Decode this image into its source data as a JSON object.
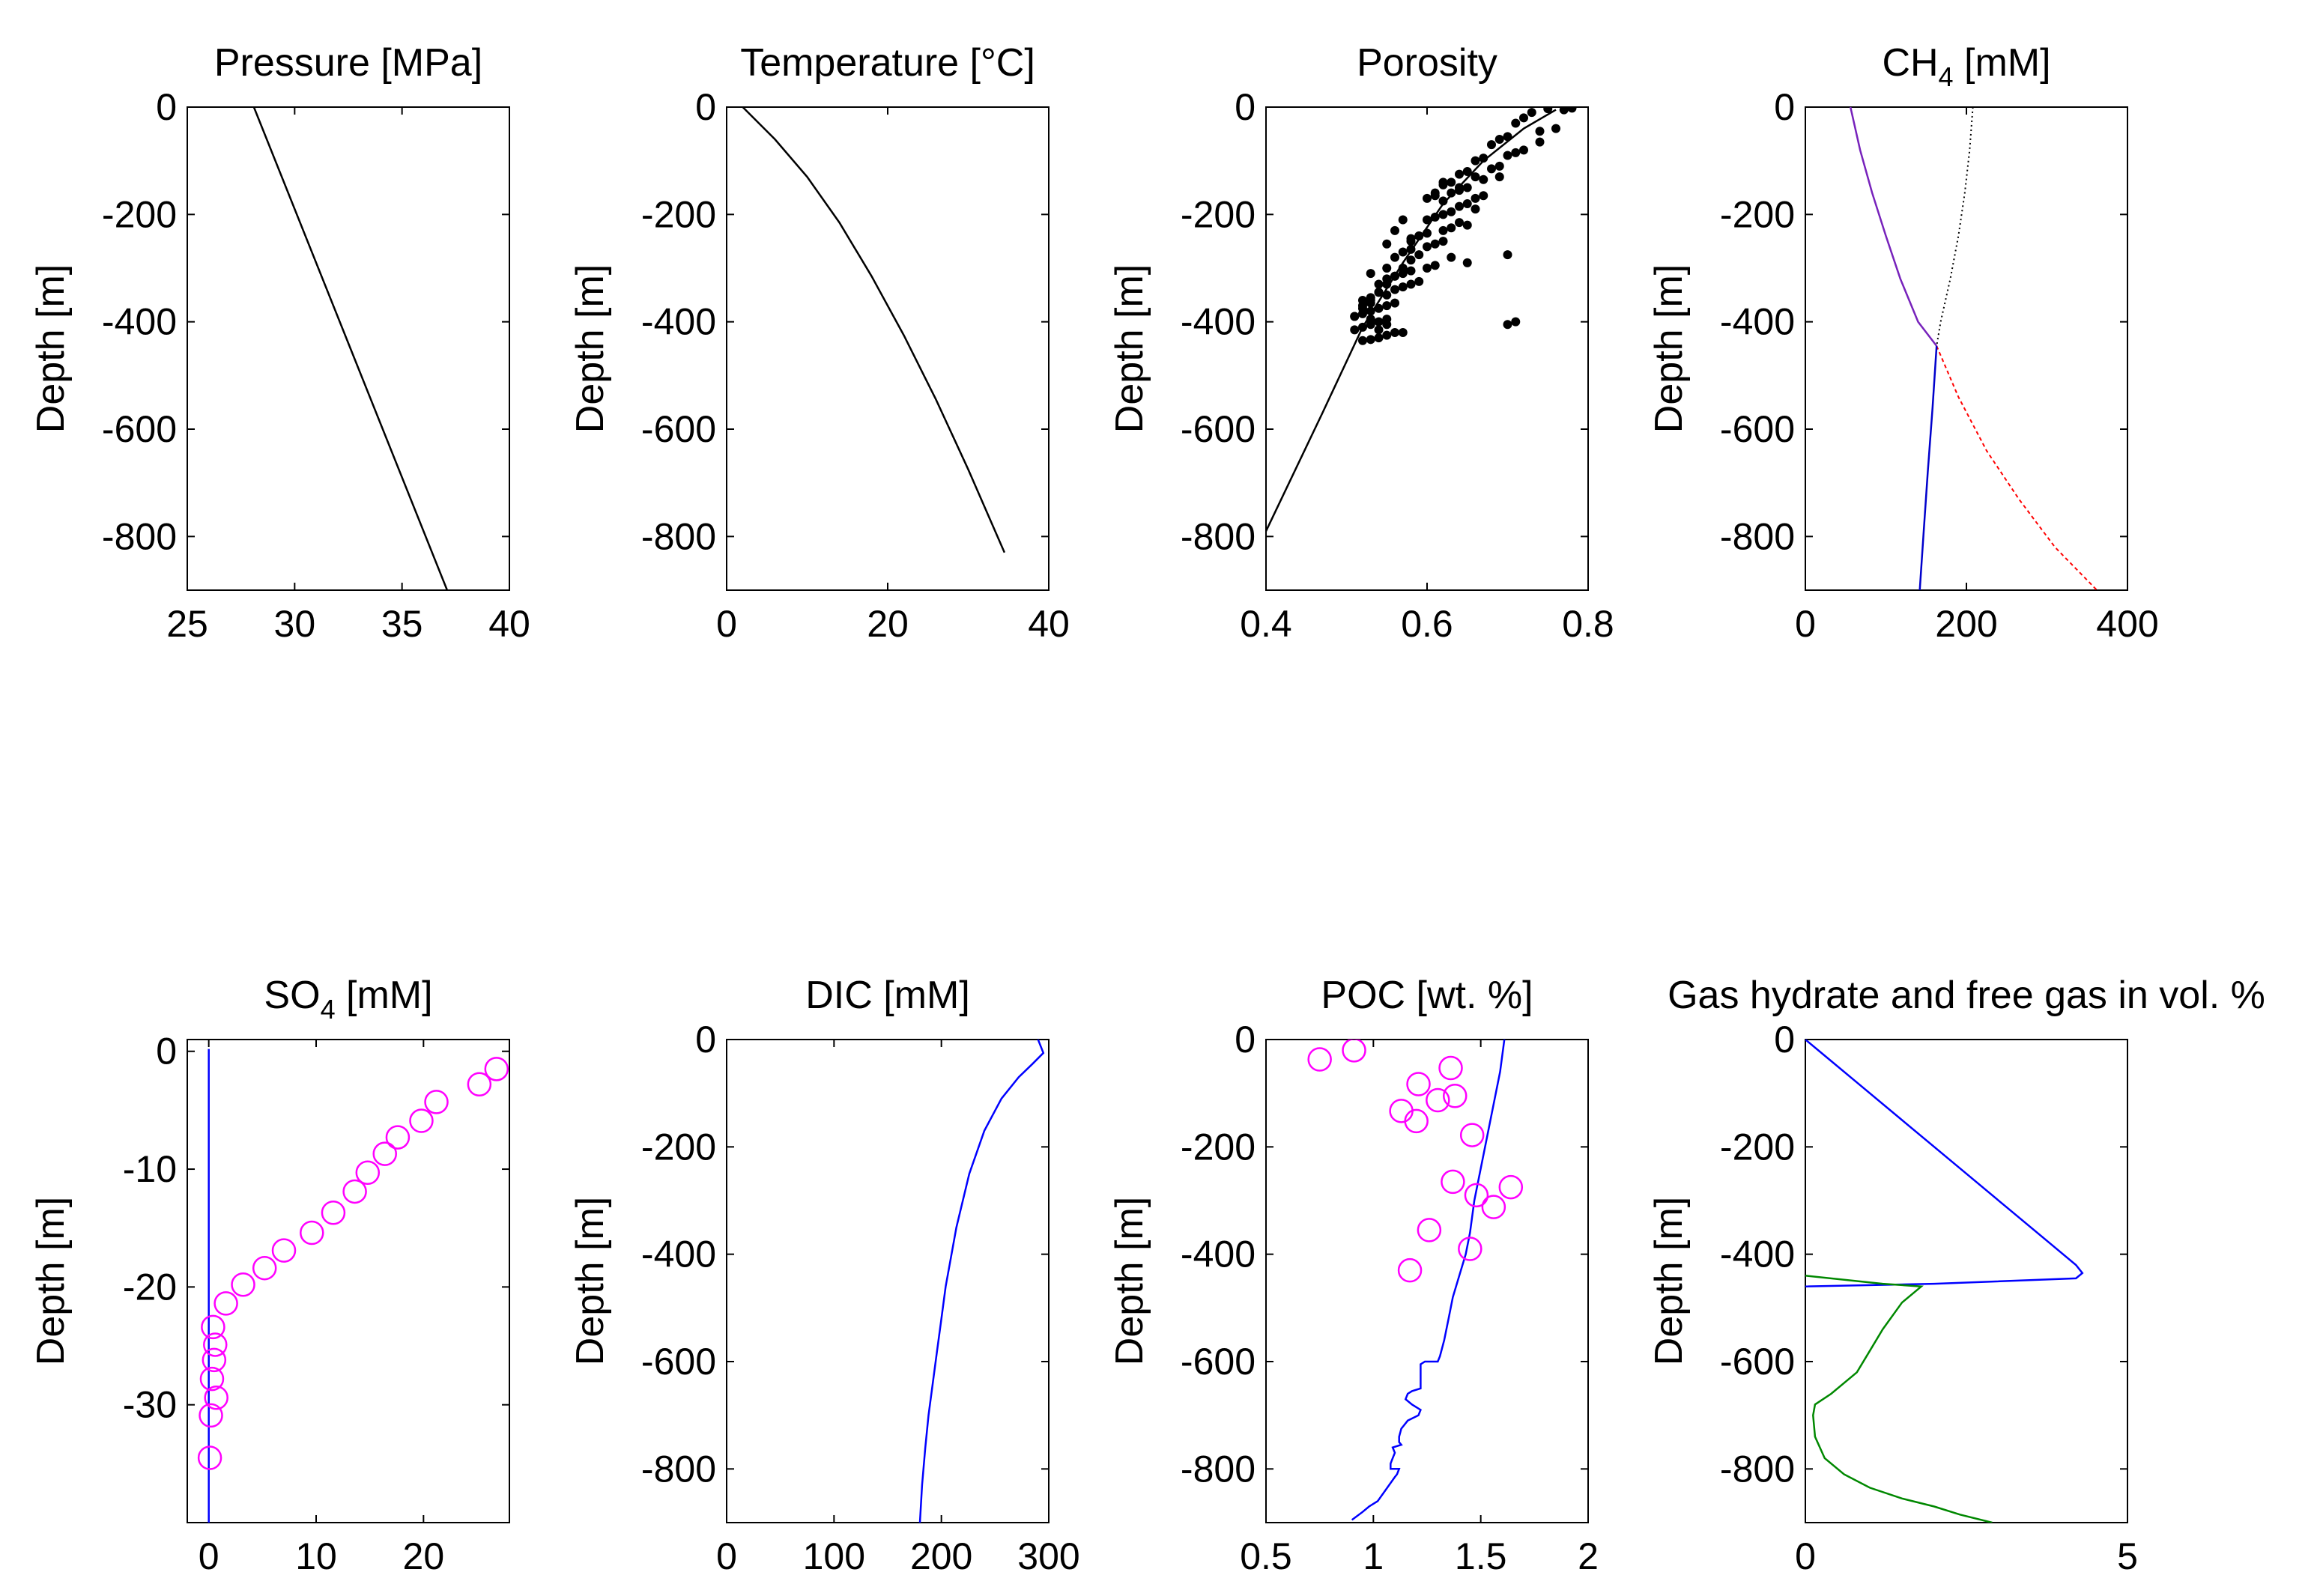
{
  "figure": {
    "ylabel": "Depth [m]"
  },
  "chart_data": [
    {
      "id": "pressure",
      "type": "line",
      "title": "Pressure [MPa]",
      "title_sub": "",
      "title_suffix": "",
      "ylabel": "Depth [m]",
      "xlim": [
        25,
        40
      ],
      "ylim": [
        -900,
        0
      ],
      "xticks": [
        25,
        30,
        35,
        40
      ],
      "yticks": [
        0,
        -200,
        -400,
        -600,
        -800
      ],
      "series": [
        {
          "color": "#000000",
          "style": "solid",
          "x": [
            28.1,
            32.6,
            37.1
          ],
          "y": [
            0,
            -450,
            -900
          ]
        }
      ]
    },
    {
      "id": "temperature",
      "type": "line",
      "title": "Temperature [°C]",
      "title_sub": "",
      "title_suffix": "",
      "ylabel": "Depth [m]",
      "xlim": [
        0,
        40
      ],
      "ylim": [
        -900,
        0
      ],
      "xticks": [
        0,
        20,
        40
      ],
      "yticks": [
        0,
        -200,
        -400,
        -600,
        -800
      ],
      "series": [
        {
          "color": "#000000",
          "style": "solid",
          "x": [
            2,
            6,
            10,
            14,
            18,
            22,
            26,
            30,
            34.5
          ],
          "y": [
            0,
            -60,
            -130,
            -215,
            -315,
            -425,
            -545,
            -675,
            -830
          ]
        }
      ]
    },
    {
      "id": "porosity",
      "type": "scatter",
      "title": "Porosity",
      "title_sub": "",
      "title_suffix": "",
      "ylabel": "Depth [m]",
      "xlim": [
        0.4,
        0.8
      ],
      "ylim": [
        -900,
        0
      ],
      "xticks": [
        0.4,
        0.6,
        0.8
      ],
      "yticks": [
        0,
        -200,
        -400,
        -600,
        -800
      ],
      "series": [
        {
          "color": "#000000",
          "style": "solid",
          "x": [
            0.4,
            0.47,
            0.52,
            0.57,
            0.62,
            0.67,
            0.72,
            0.76
          ],
          "y": [
            -790,
            -570,
            -410,
            -290,
            -180,
            -100,
            -40,
            -5
          ]
        }
      ],
      "points": {
        "color": "#000000",
        "marker": "dot",
        "x": [
          0.78,
          0.77,
          0.75,
          0.73,
          0.72,
          0.71,
          0.74,
          0.76,
          0.7,
          0.69,
          0.68,
          0.72,
          0.74,
          0.7,
          0.67,
          0.66,
          0.69,
          0.71,
          0.65,
          0.64,
          0.66,
          0.63,
          0.62,
          0.65,
          0.67,
          0.68,
          0.64,
          0.63,
          0.61,
          0.62,
          0.66,
          0.65,
          0.64,
          0.63,
          0.62,
          0.61,
          0.6,
          0.64,
          0.66,
          0.67,
          0.65,
          0.63,
          0.62,
          0.6,
          0.59,
          0.58,
          0.62,
          0.61,
          0.6,
          0.58,
          0.57,
          0.59,
          0.63,
          0.65,
          0.7,
          0.61,
          0.6,
          0.58,
          0.57,
          0.56,
          0.55,
          0.59,
          0.58,
          0.57,
          0.56,
          0.54,
          0.55,
          0.53,
          0.52,
          0.56,
          0.55,
          0.54,
          0.53,
          0.52,
          0.51,
          0.55,
          0.54,
          0.53,
          0.52,
          0.51,
          0.56,
          0.55,
          0.54,
          0.53,
          0.52,
          0.57,
          0.56,
          0.55,
          0.54,
          0.53,
          0.52,
          0.51,
          0.58,
          0.55,
          0.57,
          0.54,
          0.53,
          0.52,
          0.7,
          0.71,
          0.56,
          0.58,
          0.54,
          0.53,
          0.55,
          0.56,
          0.61,
          0.62,
          0.6,
          0.57,
          0.55,
          0.53,
          0.54,
          0.59,
          0.64,
          0.69
        ],
        "y": [
          -2,
          -5,
          -3,
          -10,
          -20,
          -30,
          -45,
          -40,
          -55,
          -60,
          -70,
          -80,
          -65,
          -90,
          -95,
          -100,
          -110,
          -85,
          -120,
          -125,
          -130,
          -140,
          -145,
          -150,
          -135,
          -115,
          -155,
          -160,
          -165,
          -175,
          -170,
          -180,
          -185,
          -195,
          -200,
          -205,
          -210,
          -215,
          -190,
          -165,
          -220,
          -225,
          -230,
          -235,
          -240,
          -245,
          -250,
          -255,
          -260,
          -265,
          -270,
          -275,
          -280,
          -290,
          -275,
          -295,
          -300,
          -305,
          -310,
          -315,
          -320,
          -325,
          -330,
          -335,
          -340,
          -345,
          -350,
          -355,
          -360,
          -365,
          -370,
          -375,
          -380,
          -385,
          -390,
          -395,
          -400,
          -405,
          -410,
          -415,
          -420,
          -425,
          -430,
          -433,
          -435,
          -300,
          -315,
          -330,
          -345,
          -360,
          -375,
          -390,
          -285,
          -405,
          -420,
          -415,
          -395,
          -370,
          -405,
          -400,
          -230,
          -250,
          -345,
          -365,
          -300,
          -280,
          -160,
          -140,
          -170,
          -210,
          -255,
          -310,
          -330,
          -240,
          -150,
          -130
        ]
      }
    },
    {
      "id": "ch4",
      "type": "line",
      "title": "CH",
      "title_sub": "4",
      "title_suffix": " [mM]",
      "ylabel": "Depth [m]",
      "xlim": [
        0,
        400
      ],
      "ylim": [
        -900,
        0
      ],
      "xticks": [
        0,
        200,
        400
      ],
      "yticks": [
        0,
        -200,
        -400,
        -600,
        -800
      ],
      "series": [
        {
          "color": "#000000",
          "style": "dotted",
          "x": [
            208,
            204,
            198,
            190,
            180,
            168,
            163
          ],
          "y": [
            0,
            -80,
            -160,
            -240,
            -320,
            -400,
            -445
          ]
        },
        {
          "color": "#7722bb",
          "style": "solid",
          "x": [
            56,
            68,
            83,
            100,
            118,
            140,
            163
          ],
          "y": [
            0,
            -80,
            -160,
            -240,
            -320,
            -400,
            -445
          ]
        },
        {
          "color": "#ff0000",
          "style": "dashed",
          "x": [
            163,
            190,
            225,
            265,
            310,
            362
          ],
          "y": [
            -445,
            -540,
            -640,
            -730,
            -820,
            -900
          ]
        },
        {
          "color": "#0000cc",
          "style": "solid",
          "x": [
            163,
            158,
            152,
            147,
            142
          ],
          "y": [
            -445,
            -560,
            -680,
            -790,
            -900
          ]
        }
      ]
    },
    {
      "id": "so4",
      "type": "scatter",
      "title": "SO",
      "title_sub": "4",
      "title_suffix": " [mM]",
      "ylabel": "Depth [m]",
      "xlim": [
        -2,
        28
      ],
      "ylim": [
        -40,
        1
      ],
      "xticks": [
        0,
        10,
        20
      ],
      "yticks": [
        0,
        -10,
        -20,
        -30
      ],
      "series": [
        {
          "color": "#0000ff",
          "style": "solid",
          "x": [
            0,
            0
          ],
          "y": [
            0.2,
            -40
          ]
        }
      ],
      "points": {
        "color": "#ff00ff",
        "marker": "circle",
        "x": [
          26.8,
          25.2,
          21.2,
          19.8,
          17.6,
          16.4,
          14.8,
          13.6,
          11.6,
          9.6,
          7.0,
          5.2,
          3.2,
          1.6,
          0.4,
          0.6,
          0.5,
          0.3,
          0.7,
          0.2,
          0.1
        ],
        "y": [
          -1.5,
          -2.8,
          -4.3,
          -5.9,
          -7.3,
          -8.7,
          -10.3,
          -11.9,
          -13.7,
          -15.4,
          -16.9,
          -18.4,
          -19.8,
          -21.4,
          -23.4,
          -24.9,
          -26.2,
          -27.8,
          -29.4,
          -30.9,
          -34.5
        ]
      }
    },
    {
      "id": "dic",
      "type": "line",
      "title": "DIC [mM]",
      "title_sub": "",
      "title_suffix": "",
      "ylabel": "Depth [m]",
      "xlim": [
        0,
        300
      ],
      "ylim": [
        -900,
        0
      ],
      "xticks": [
        0,
        100,
        200,
        300
      ],
      "yticks": [
        0,
        -200,
        -400,
        -600,
        -800
      ],
      "series": [
        {
          "color": "#0000ff",
          "style": "solid",
          "x": [
            290,
            295,
            285,
            272,
            256,
            240,
            226,
            214,
            204,
            200,
            196,
            192,
            188,
            185,
            182,
            180
          ],
          "y": [
            0,
            -25,
            -45,
            -70,
            -110,
            -170,
            -250,
            -350,
            -460,
            -520,
            -580,
            -640,
            -700,
            -760,
            -830,
            -900
          ]
        }
      ]
    },
    {
      "id": "poc",
      "type": "scatter",
      "title": "POC [wt. %]",
      "title_sub": "",
      "title_suffix": "",
      "ylabel": "Depth [m]",
      "xlim": [
        0.5,
        2
      ],
      "ylim": [
        -900,
        0
      ],
      "xticks": [
        0.5,
        1,
        1.5,
        2
      ],
      "yticks": [
        0,
        -200,
        -400,
        -600,
        -800
      ],
      "series": [
        {
          "color": "#0000ff",
          "style": "solid",
          "x": [
            1.61,
            1.59,
            1.56,
            1.53,
            1.5,
            1.47,
            1.45,
            1.43,
            1.4,
            1.37,
            1.35,
            1.33,
            1.31,
            1.3,
            1.24,
            1.22,
            1.22,
            1.18,
            1.16,
            1.15,
            1.18,
            1.22,
            1.21,
            1.16,
            1.14,
            1.13,
            1.12,
            1.12,
            1.13,
            1.09,
            1.1,
            1.09,
            1.08,
            1.08,
            1.12,
            1.11,
            1.1,
            1.02,
            0.98,
            0.95,
            0.9
          ],
          "y": [
            0,
            -60,
            -120,
            -180,
            -240,
            -300,
            -360,
            -400,
            -440,
            -480,
            -520,
            -560,
            -590,
            -600,
            -600,
            -605,
            -650,
            -655,
            -660,
            -670,
            -680,
            -690,
            -700,
            -710,
            -720,
            -725,
            -740,
            -750,
            -755,
            -760,
            -770,
            -780,
            -790,
            -800,
            -800,
            -810,
            -815,
            -860,
            -870,
            -880,
            -895
          ]
        }
      ],
      "points": {
        "color": "#ff00ff",
        "marker": "circle",
        "x": [
          0.75,
          0.91,
          1.36,
          1.21,
          1.38,
          1.3,
          1.13,
          1.2,
          1.46,
          1.37,
          1.64,
          1.48,
          1.56,
          1.26,
          1.45,
          1.17
        ],
        "y": [
          -37,
          -20,
          -53,
          -83,
          -105,
          -113,
          -133,
          -152,
          -178,
          -265,
          -275,
          -290,
          -312,
          -355,
          -390,
          -430
        ]
      }
    },
    {
      "id": "hydrate",
      "type": "line",
      "title": "Gas hydrate and free gas in vol. %",
      "title_sub": "",
      "title_suffix": "",
      "ylabel": "Depth [m]",
      "xlim": [
        0,
        5
      ],
      "ylim": [
        -900,
        0
      ],
      "xticks": [
        0,
        5
      ],
      "yticks": [
        0,
        -200,
        -400,
        -600,
        -800
      ],
      "series": [
        {
          "color": "#0000ff",
          "style": "solid",
          "x": [
            0,
            0.3,
            0.8,
            1.5,
            2.3,
            3.1,
            3.8,
            4.2,
            4.3,
            4.2,
            2.0,
            0
          ],
          "y": [
            0,
            -30,
            -80,
            -150,
            -230,
            -310,
            -380,
            -420,
            -435,
            -445,
            -455,
            -460
          ]
        },
        {
          "color": "#008800",
          "style": "solid",
          "x": [
            0,
            1.2,
            1.8,
            1.5,
            1.2,
            1.0,
            0.8,
            0.4,
            0.15,
            0.12,
            0.15,
            0.3,
            0.6,
            1.0,
            1.5,
            2.0,
            2.4,
            2.9
          ],
          "y": [
            -440,
            -455,
            -460,
            -490,
            -540,
            -580,
            -620,
            -660,
            -680,
            -700,
            -740,
            -780,
            -810,
            -835,
            -855,
            -870,
            -885,
            -900
          ]
        }
      ]
    }
  ]
}
